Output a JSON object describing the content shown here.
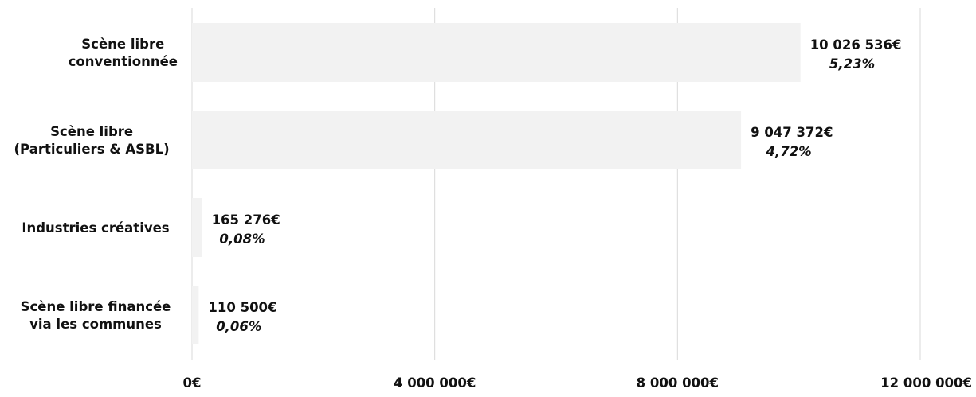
{
  "chart_data": {
    "type": "bar",
    "orientation": "horizontal",
    "categories": [
      [
        "Scène libre",
        "conventionnée"
      ],
      [
        "Scène libre",
        "(Particuliers & ASBL)"
      ],
      [
        "Industries créatives"
      ],
      [
        "Scène libre financée",
        "via les communes"
      ]
    ],
    "values": [
      10026536,
      9047372,
      165276,
      110500
    ],
    "value_labels": [
      "10 026 536€",
      "9 047 372€",
      "165 276€",
      "110 500€"
    ],
    "percent_labels": [
      "5,23%",
      "4,72%",
      "0,08%",
      "0,06%"
    ],
    "xlim": [
      0,
      12000000
    ],
    "x_ticks": [
      0,
      4000000,
      8000000,
      12000000
    ],
    "x_tick_labels": [
      "0€",
      "4 000 000€",
      "8 000 000€",
      "12 000 000€"
    ],
    "grid": true,
    "legend": "none",
    "colors": {
      "bar": "#f2f2f2",
      "grid": "#d9d9d9",
      "text": "#111111"
    }
  }
}
